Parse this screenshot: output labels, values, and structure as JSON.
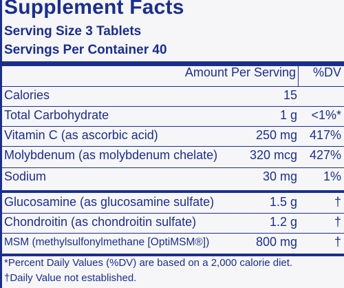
{
  "title": "Supplement Facts",
  "serving_size": "Serving Size 3 Tablets",
  "servings_per_container": "Servings Per Container 40",
  "header": {
    "amount": "Amount Per Serving",
    "dv": "%DV"
  },
  "rows": [
    {
      "name": "Calories",
      "amount": "15",
      "dv": ""
    },
    {
      "name": "Total Carbohydrate",
      "amount": "1 g",
      "dv": "<1%*"
    },
    {
      "name": "Vitamin C (as ascorbic acid)",
      "amount": "250 mg",
      "dv": "417%"
    },
    {
      "name": "Molybdenum (as molybdenum chelate)",
      "amount": "320 mcg",
      "dv": "427%"
    },
    {
      "name": "Sodium",
      "amount": "30 mg",
      "dv": "1%"
    },
    {
      "name": "Glucosamine (as glucosamine sulfate)",
      "amount": "1.5 g",
      "dv": "†"
    },
    {
      "name": "Chondroitin (as chondroitin sulfate)",
      "amount": "1.2 g",
      "dv": "†"
    },
    {
      "name": "MSM (methylsulfonylmethane [OptiMSM®])",
      "amount": "800 mg",
      "dv": "†"
    }
  ],
  "footnotes": [
    "*Percent Daily Values (%DV) are based on a 2,000 calorie diet.",
    "†Daily Value not established."
  ],
  "colors": {
    "ink": "#1b2f8a",
    "background": "#f6f6f8"
  }
}
